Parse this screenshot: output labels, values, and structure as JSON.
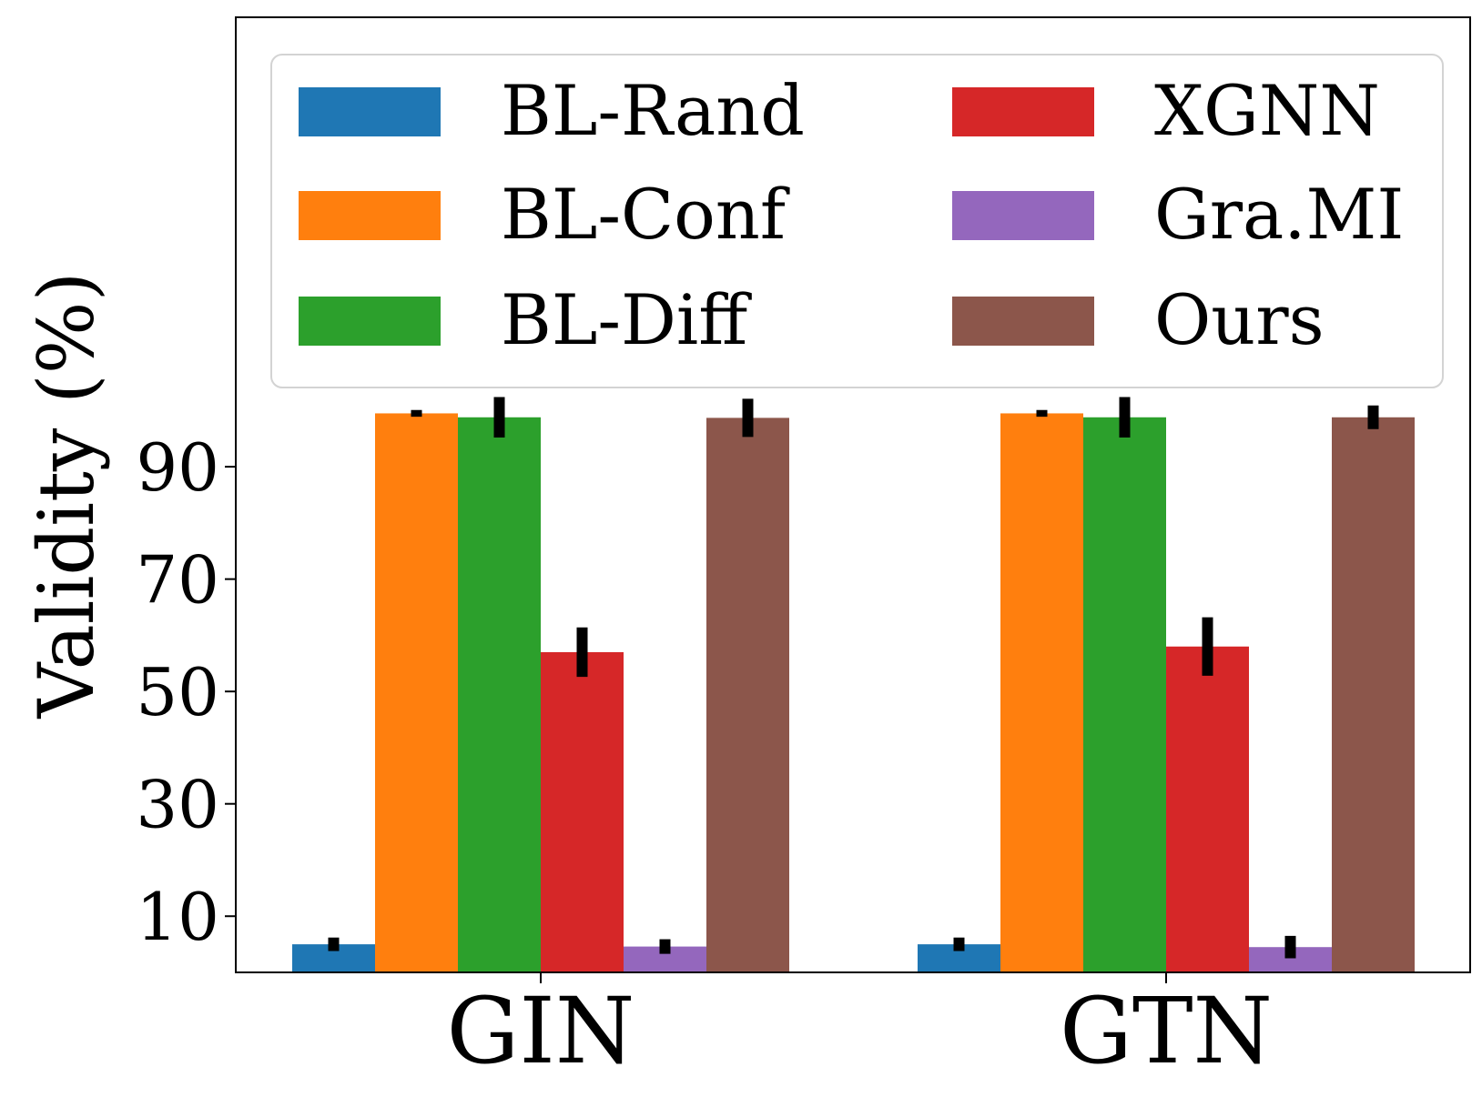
{
  "chart_data": {
    "type": "bar",
    "title": "",
    "xlabel": "",
    "ylabel": "Validity (%)",
    "categories": [
      "GIN",
      "GTN"
    ],
    "yticks": [
      10,
      30,
      50,
      70,
      90
    ],
    "ylim": [
      0,
      170
    ],
    "grid": false,
    "legend_position": "top",
    "series": [
      {
        "name": "BL-Rand",
        "color": "#1f77b4",
        "values": [
          5.0,
          5.0
        ],
        "errors": [
          1.2,
          1.2
        ]
      },
      {
        "name": "BL-Conf",
        "color": "#ff7f0e",
        "values": [
          99.5,
          99.5
        ],
        "errors": [
          0.6,
          0.6
        ]
      },
      {
        "name": "BL-Diff",
        "color": "#2ca02c",
        "values": [
          98.8,
          98.8
        ],
        "errors": [
          3.6,
          3.6
        ]
      },
      {
        "name": "XGNN",
        "color": "#d62728",
        "values": [
          57.0,
          58.0
        ],
        "errors": [
          4.4,
          5.2
        ]
      },
      {
        "name": "Gra.MI",
        "color": "#9467bd",
        "values": [
          4.6,
          4.5
        ],
        "errors": [
          1.3,
          2.0
        ]
      },
      {
        "name": "Ours",
        "color": "#8c564b",
        "values": [
          98.7,
          98.8
        ],
        "errors": [
          3.4,
          2.1
        ]
      }
    ]
  }
}
